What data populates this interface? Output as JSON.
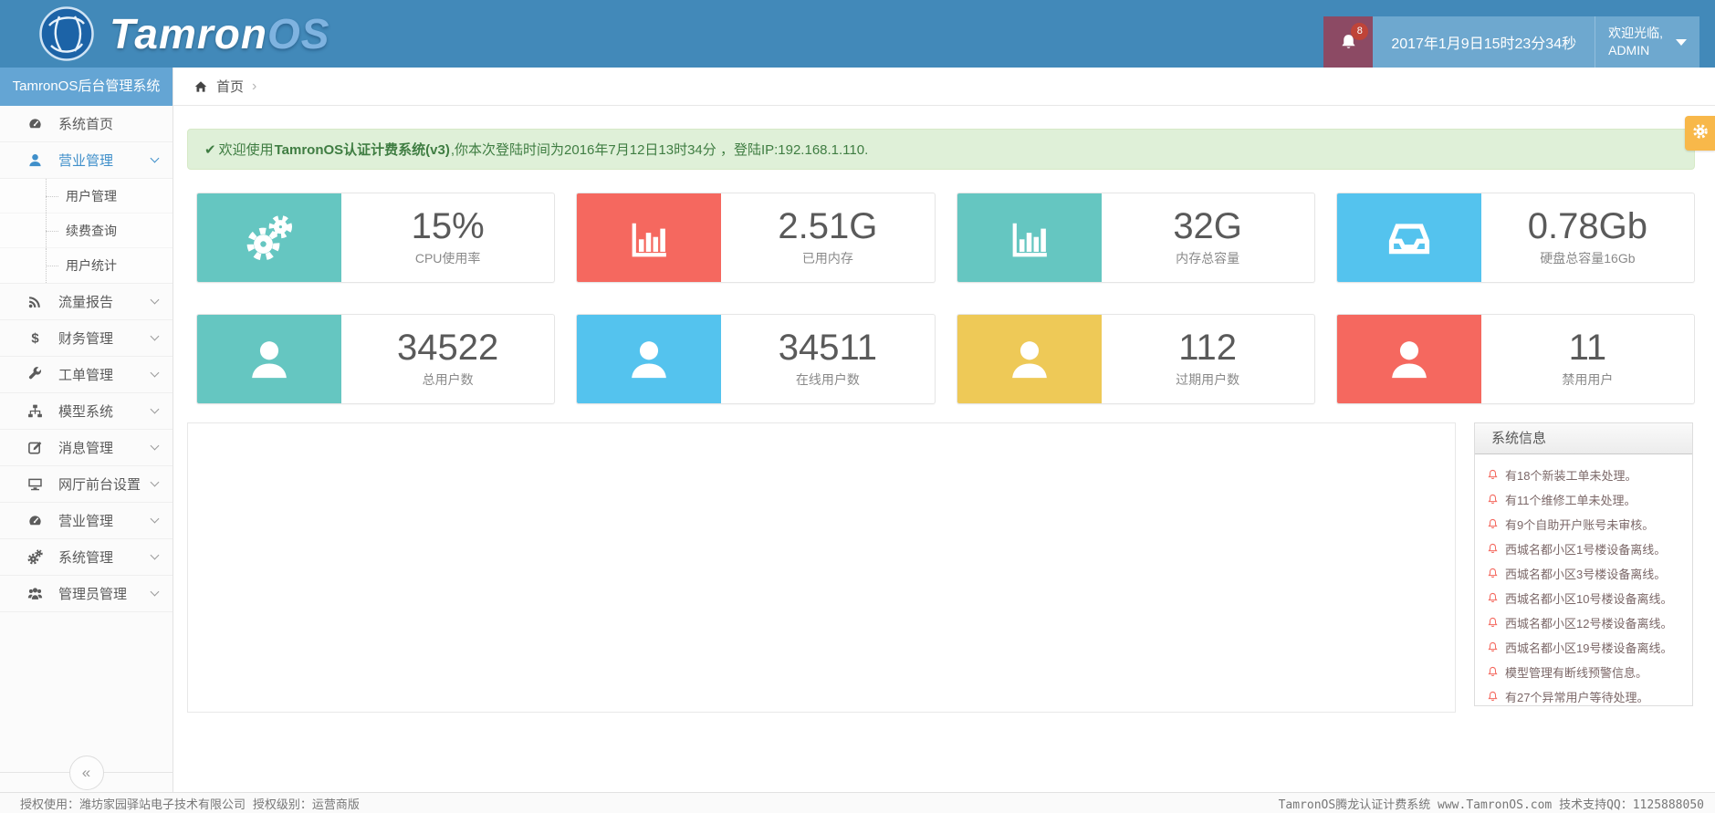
{
  "header": {
    "logo": {
      "brand_primary": "Tamron",
      "brand_secondary": "OS"
    },
    "notification_count": "8",
    "datetime": "2017年1月9日15时23分34秒",
    "welcome_line1": "欢迎光临,",
    "welcome_line2": "ADMIN"
  },
  "sidebar": {
    "title": "TamronOS后台管理系统",
    "collapse_label": "«",
    "items": [
      {
        "label": "系统首页",
        "icon": "tachometer",
        "active": false,
        "chevron": false
      },
      {
        "label": "营业管理",
        "icon": "user",
        "active": true,
        "chevron": true,
        "children": [
          {
            "label": "用户管理"
          },
          {
            "label": "续费查询"
          },
          {
            "label": "用户统计"
          }
        ]
      },
      {
        "label": "流量报告",
        "icon": "rss",
        "active": false,
        "chevron": true
      },
      {
        "label": "财务管理",
        "icon": "dollar",
        "active": false,
        "chevron": true
      },
      {
        "label": "工单管理",
        "icon": "wrench",
        "active": false,
        "chevron": true
      },
      {
        "label": "模型系统",
        "icon": "sitemap",
        "active": false,
        "chevron": true
      },
      {
        "label": "消息管理",
        "icon": "edit",
        "active": false,
        "chevron": true
      },
      {
        "label": "网厅前台设置",
        "icon": "desktop",
        "active": false,
        "chevron": true
      },
      {
        "label": "营业管理",
        "icon": "tachometer",
        "active": false,
        "chevron": true
      },
      {
        "label": "系统管理",
        "icon": "gears",
        "active": false,
        "chevron": true
      },
      {
        "label": "管理员管理",
        "icon": "users",
        "active": false,
        "chevron": true
      }
    ]
  },
  "breadcrumb": {
    "home": "首页",
    "separator": "›"
  },
  "alert": {
    "check": "✔",
    "prefix": "欢迎使用",
    "bold": "TamronOS认证计费系统(v3)",
    "suffix": ",你本次登陆时间为2016年7月12日13时34分 ，登陆IP:192.168.1.110."
  },
  "stats": {
    "row1": [
      {
        "value": "15%",
        "label": "CPU使用率",
        "color": "#65c6c1",
        "icon": "gears"
      },
      {
        "value": "2.51G",
        "label": "已用内存",
        "color": "#f5685f",
        "icon": "bar-chart"
      },
      {
        "value": "32G",
        "label": "内存总容量",
        "color": "#65c6c1",
        "icon": "bar-chart"
      },
      {
        "value": "0.78Gb",
        "label": "硬盘总容量16Gb",
        "color": "#54c3ee",
        "icon": "inbox"
      }
    ],
    "row2": [
      {
        "value": "34522",
        "label": "总用户数",
        "color": "#65c6c1",
        "icon": "user"
      },
      {
        "value": "34511",
        "label": "在线用户数",
        "color": "#54c3ee",
        "icon": "user"
      },
      {
        "value": "112",
        "label": "过期用户数",
        "color": "#eec957",
        "icon": "user"
      },
      {
        "value": "11",
        "label": "禁用用户",
        "color": "#f5685f",
        "icon": "user"
      }
    ]
  },
  "sysinfo": {
    "title": "系统信息",
    "items": [
      "有18个新装工单未处理。",
      "有11个维修工单未处理。",
      "有9个自助开户账号未审核。",
      "西城名都小区1号楼设备离线。",
      "西城名都小区3号楼设备离线。",
      "西城名都小区10号楼设备离线。",
      "西城名都小区12号楼设备离线。",
      "西城名都小区19号楼设备离线。",
      "模型管理有断线预警信息。",
      "有27个异常用户等待处理。"
    ]
  },
  "footer": {
    "left": "授权使用：潍坊家园驿站电子技术有限公司  授权级别：运营商版",
    "right": "TamronOS腾龙认证计费系统 www.TamronOS.com 技术支持QQ：1125888050"
  },
  "colors": {
    "header": "#4289b9",
    "accent": "#428bca",
    "teal": "#65c6c1",
    "red": "#f5685f",
    "blue": "#54c3ee",
    "yellow": "#eec957"
  }
}
